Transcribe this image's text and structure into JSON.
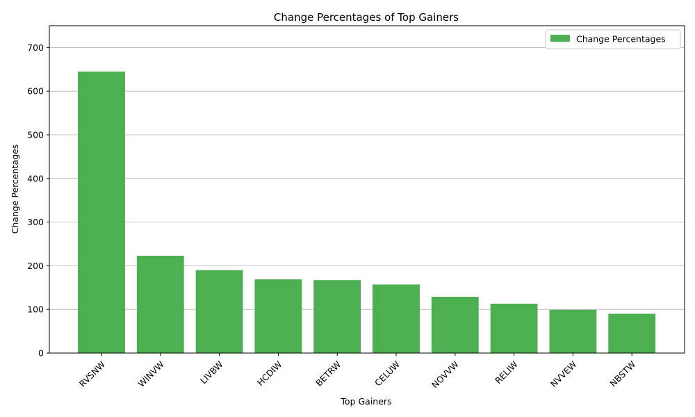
{
  "chart_data": {
    "type": "bar",
    "title": "Change Percentages of Top Gainers",
    "xlabel": "Top Gainers",
    "ylabel": "Change Percentages",
    "categories": [
      "RVSNW",
      "WINVW",
      "LIVBW",
      "HCDIW",
      "BETRW",
      "CELUW",
      "NOVVW",
      "RELIW",
      "NVVEW",
      "NBSTW"
    ],
    "series": [
      {
        "name": "Change Percentages",
        "values": [
          645,
          223,
          190,
          169,
          167,
          157,
          129,
          113,
          99,
          90
        ],
        "color": "#4caf50"
      }
    ],
    "ylim": [
      0,
      750
    ],
    "yticks": [
      0,
      100,
      200,
      300,
      400,
      500,
      600,
      700
    ],
    "grid": "y",
    "legend_position": "top-right",
    "xtick_rotation": -45
  }
}
